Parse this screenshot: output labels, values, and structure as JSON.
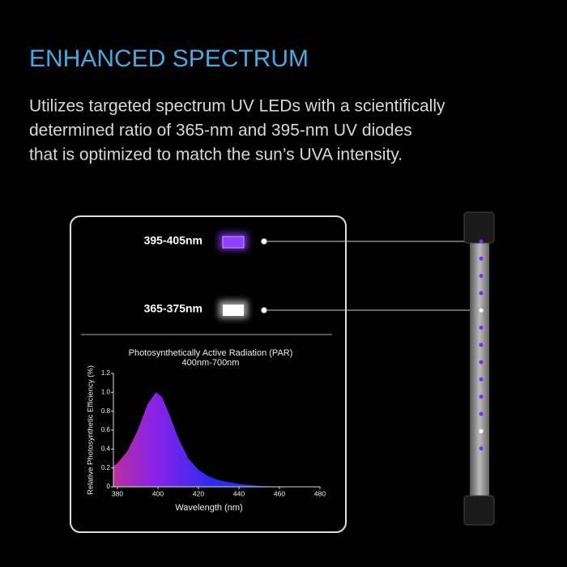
{
  "header": {
    "title": "ENHANCED SPECTRUM",
    "body": [
      "Utilizes targeted spectrum UV LEDs with a scientifically",
      "determined ratio of 365-nm and 395-nm UV diodes",
      "that is optimized to match the sun’s UVA intensity."
    ]
  },
  "wavelength_labels": [
    "395-405nm",
    "365-375nm"
  ],
  "chart_data": {
    "type": "area",
    "title": "Photosynthetically Active Radiation (PAR)",
    "subtitle": "400nm-700nm",
    "x_label": "Wavelength (nm)",
    "y_label": "Relative Photosynthetic Efficiency (%)",
    "x": [
      378,
      380,
      385,
      390,
      395,
      399,
      402,
      405,
      410,
      415,
      420,
      425,
      430,
      440,
      450,
      460
    ],
    "values": [
      0.22,
      0.25,
      0.38,
      0.6,
      0.88,
      1.0,
      0.95,
      0.8,
      0.52,
      0.3,
      0.18,
      0.11,
      0.07,
      0.03,
      0.01,
      0
    ],
    "xlim": [
      378,
      480
    ],
    "xticks": [
      380,
      400,
      420,
      440,
      460,
      480
    ],
    "ylim": [
      0,
      1.2
    ],
    "yticks": [
      0,
      0.2,
      0.4,
      0.6,
      0.8,
      {
        "value": 1,
        "label": "1.0"
      },
      1.2
    ],
    "colors": [
      "#b8309a",
      "#8a22e8",
      "#2a2cf2"
    ]
  }
}
